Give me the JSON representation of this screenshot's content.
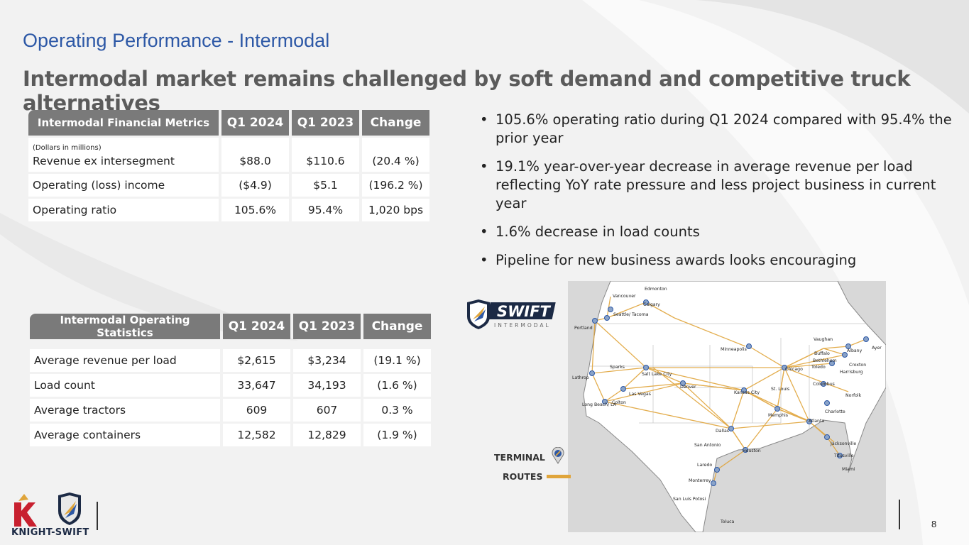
{
  "header": {
    "title": "Operating Performance - Intermodal",
    "subtitle": "Intermodal market remains challenged by soft demand and competitive truck alternatives"
  },
  "financial_table": {
    "header": [
      "Intermodal Financial Metrics",
      "Q1 2024",
      "Q1 2023",
      "Change"
    ],
    "unit_note": "(Dollars in millions)",
    "rows": [
      [
        "Revenue ex intersegment",
        "$88.0",
        "$110.6",
        "(20.4 %)"
      ],
      [
        "Operating (loss) income",
        "($4.9)",
        "$5.1",
        "(196.2 %)"
      ],
      [
        "Operating ratio",
        "105.6%",
        "95.4%",
        "1,020 bps"
      ]
    ]
  },
  "stats_table": {
    "header": [
      "Intermodal Operating Statistics",
      "Q1 2024",
      "Q1 2023",
      "Change"
    ],
    "rows": [
      [
        "Average revenue per load",
        "$2,615",
        "$3,234",
        "(19.1 %)"
      ],
      [
        "Load count",
        "33,647",
        "34,193",
        "(1.6 %)"
      ],
      [
        "Average tractors",
        "609",
        "607",
        "0.3 %"
      ],
      [
        "Average containers",
        "12,582",
        "12,829",
        "(1.9 %)"
      ]
    ]
  },
  "bullets": [
    "105.6% operating ratio during Q1 2024 compared with 95.4% the prior year",
    "19.1% year-over-year decrease in average revenue per load reflecting YoY rate pressure and less project business in current year",
    "1.6% decrease in load counts",
    "Pipeline for new business awards looks encouraging"
  ],
  "bullet_glyph": "•",
  "map": {
    "cities": [
      "Edmonton",
      "Vancouver",
      "Calgary",
      "Seattle/ Tacoma",
      "Portland",
      "Lathrop",
      "Sparks",
      "Salt Lake City",
      "Las Vegas",
      "Colton",
      "Long Beach/ LA",
      "Denver",
      "Minneapolis",
      "Kansas City",
      "Chicago",
      "St. Louis",
      "Memphis",
      "Dallas",
      "San Antonio",
      "Houston",
      "Laredo",
      "Monterrey",
      "San Luis Potosi",
      "Toluca",
      "Atlanta",
      "Charlotte",
      "Columbus",
      "Toledo",
      "Buffalo",
      "Bethlehem",
      "Harrisburg",
      "Croxton",
      "Norfolk",
      "Albany",
      "Ayer",
      "Vaughan",
      "Jacksonville",
      "Titusville",
      "Miami"
    ],
    "route_color": "#e0a53b"
  },
  "swift_logo": {
    "word": "SWIFT",
    "sub": "INTERMODAL"
  },
  "legend": {
    "terminal": "TERMINAL",
    "routes": "ROUTES"
  },
  "footer": {
    "company": "KNIGHT-SWIFT",
    "page_number": "8"
  },
  "colors": {
    "title_blue": "#2d58a6",
    "header_gray": "#7a7a7a",
    "accent_red": "#c8202f",
    "navy": "#1c2a45"
  }
}
